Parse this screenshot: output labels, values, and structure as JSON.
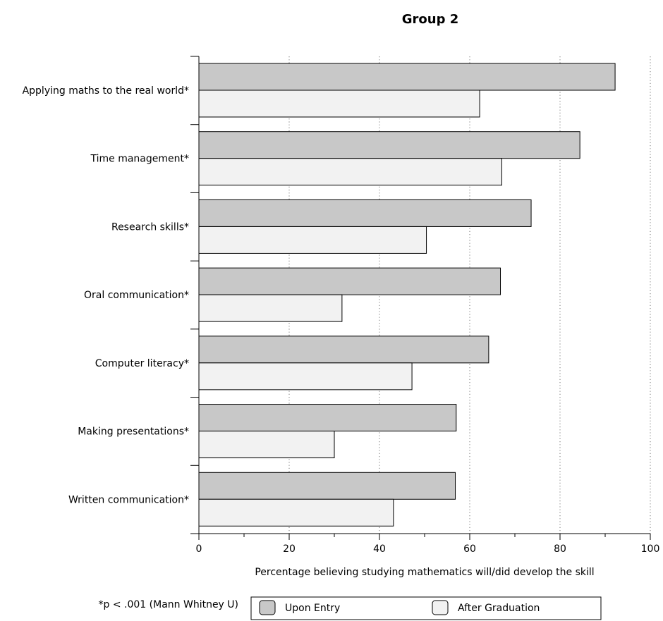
{
  "chart_data": {
    "type": "bar",
    "orientation": "horizontal",
    "title": "Group 2",
    "xlabel": "Percentage believing studying mathematics will/did develop the skill",
    "ylabel": "",
    "xlim": [
      0,
      100
    ],
    "xticks": [
      0,
      20,
      40,
      60,
      80,
      100
    ],
    "grid": "vertical dotted",
    "categories": [
      "Applying maths to the real world*",
      "Time management*",
      "Research skills*",
      "Oral communication*",
      "Computer literacy*",
      "Making presentations*",
      "Written communication*"
    ],
    "series": [
      {
        "name": "Upon Entry",
        "color": "#c8c8c8",
        "values": [
          92.2,
          84.4,
          73.6,
          66.8,
          64.2,
          57.0,
          56.8
        ]
      },
      {
        "name": "After Graduation",
        "color": "#f2f2f2",
        "values": [
          62.2,
          67.1,
          50.4,
          31.7,
          47.2,
          30.0,
          43.1
        ]
      }
    ],
    "legend": "bottom",
    "note": "*p < .001 (Mann Whitney U)"
  }
}
